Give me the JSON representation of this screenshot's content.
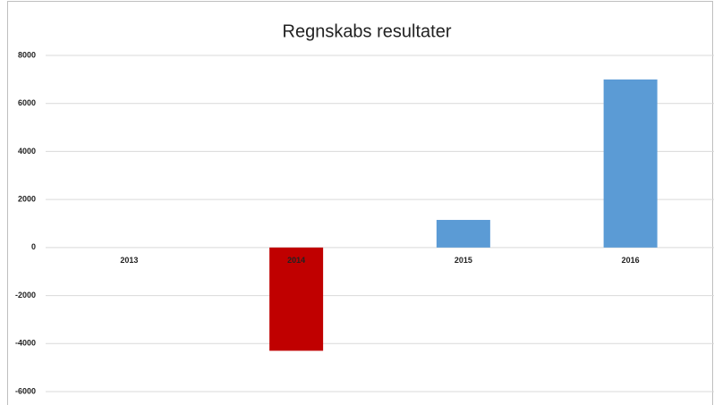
{
  "chart_data": {
    "type": "bar",
    "title": "Regnskabs resultater",
    "categories": [
      "2013",
      "2014",
      "2015",
      "2016"
    ],
    "values": [
      0,
      -4300,
      1150,
      7000
    ],
    "colors": [
      "#5b9bd5",
      "#c00000",
      "#5b9bd5",
      "#5b9bd5"
    ],
    "ylim": [
      -6000,
      8000
    ],
    "yticks": [
      -6000,
      -4000,
      -2000,
      0,
      2000,
      4000,
      6000,
      8000
    ],
    "grid": true
  }
}
